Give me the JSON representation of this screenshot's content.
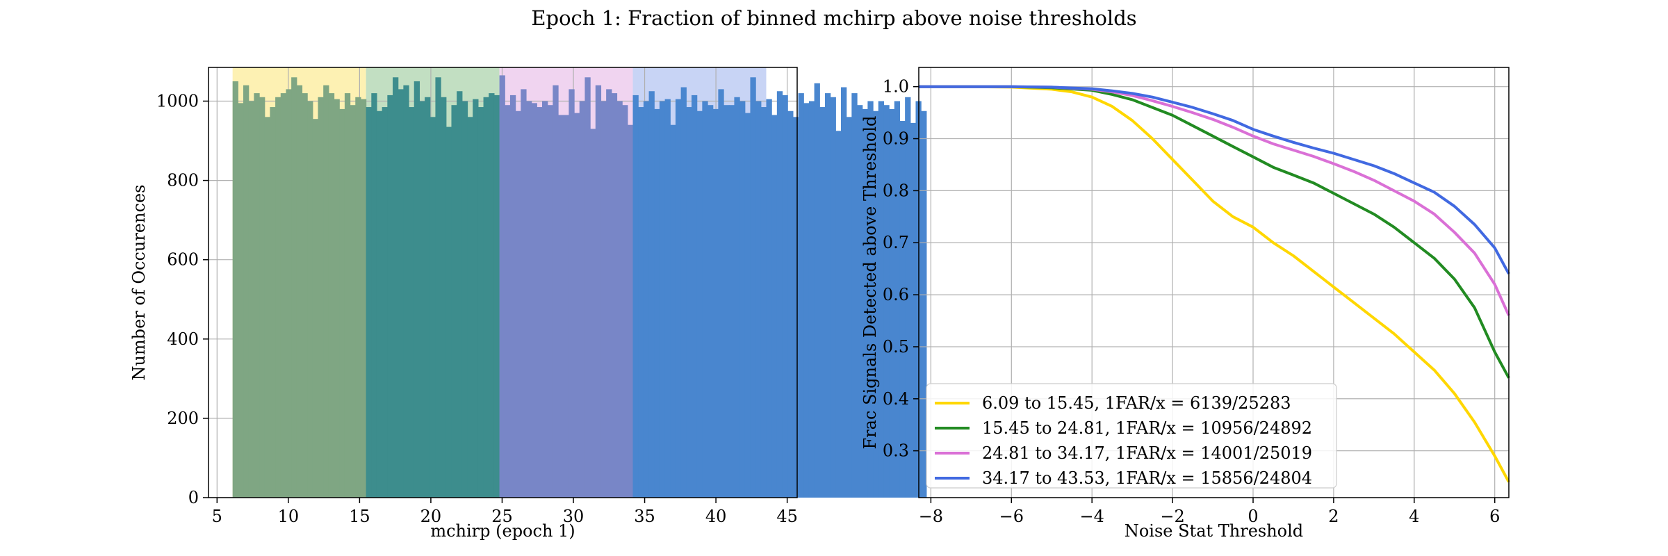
{
  "suptitle": "Epoch 1: Fraction of binned mchirp above noise thresholds",
  "chart_data": [
    {
      "type": "bar",
      "subtype": "histogram",
      "title": "",
      "xlabel": "mchirp (epoch 1)",
      "ylabel": "Number of Occurences",
      "xlim": [
        4.4,
        45.7
      ],
      "ylim": [
        0,
        1085
      ],
      "xticks": [
        5,
        10,
        15,
        20,
        25,
        30,
        35,
        40,
        45
      ],
      "yticks": [
        0,
        200,
        400,
        600,
        800,
        1000
      ],
      "grid": true,
      "bin_edges_start": 6.09,
      "bin_width": 0.3744,
      "counts": [
        1050,
        995,
        1040,
        1000,
        1020,
        1010,
        960,
        985,
        1010,
        1020,
        1030,
        1060,
        1040,
        1020,
        1000,
        955,
        1010,
        1040,
        1020,
        1005,
        980,
        1020,
        990,
        1010,
        1005,
        985,
        1020,
        975,
        985,
        1015,
        1060,
        1030,
        1040,
        985,
        1050,
        1000,
        1010,
        960,
        1060,
        1010,
        935,
        990,
        1025,
        1000,
        960,
        1005,
        985,
        1010,
        1020,
        1015,
        1065,
        990,
        1015,
        975,
        1030,
        1000,
        995,
        985,
        1000,
        990,
        1040,
        965,
        965,
        1030,
        970,
        1000,
        1060,
        930,
        1040,
        1000,
        1030,
        1020,
        1000,
        990,
        940,
        1015,
        985,
        1000,
        1025,
        980,
        1000,
        1005,
        940,
        1005,
        1035,
        985,
        1015,
        975,
        1000,
        990,
        980,
        1030,
        990,
        990,
        1010,
        1000,
        970,
        1060,
        1000,
        985,
        1005,
        965,
        1025,
        1015,
        975,
        960,
        1020,
        995,
        1000,
        1045,
        985,
        1020,
        1010,
        925,
        1035,
        960,
        1020,
        990,
        980,
        1000,
        975,
        1000,
        990,
        980,
        1000,
        950,
        1010,
        945,
        1000,
        975
      ],
      "bins": [
        {
          "label": "6.09 to 15.45",
          "min": 6.09,
          "max": 15.45,
          "bar_color": "#7fa683",
          "band_color": "#fdf1b3"
        },
        {
          "label": "15.45 to 24.81",
          "min": 15.45,
          "max": 24.81,
          "bar_color": "#3d8d8d",
          "band_color": "#c2dfc2"
        },
        {
          "label": "24.81 to 34.17",
          "min": 24.81,
          "max": 34.17,
          "bar_color": "#7886c7",
          "band_color": "#f0d4f0"
        },
        {
          "label": "34.17 to 43.53",
          "min": 34.17,
          "max": 43.53,
          "bar_color": "#4986cf",
          "band_color": "#c8d4f5"
        }
      ]
    },
    {
      "type": "line",
      "title": "",
      "xlabel": "Noise Stat Threshold",
      "ylabel": "Frac Signals Detected above Threshold",
      "xlim": [
        -8.3,
        6.35
      ],
      "ylim": [
        0.21,
        1.037
      ],
      "xticks": [
        -8,
        -6,
        -4,
        -2,
        0,
        2,
        4,
        6
      ],
      "yticks": [
        0.3,
        0.4,
        0.5,
        0.6,
        0.7,
        0.8,
        0.9,
        1.0
      ],
      "ytick_labels": [
        "0.3",
        "0.4",
        "0.5",
        "0.6",
        "0.7",
        "0.8",
        "0.9",
        "1.0"
      ],
      "grid": true,
      "legend_position": "lower-left",
      "series": [
        {
          "name": "6.09 to 15.45, 1FAR/x = 6139/25283",
          "color": "#ffd700",
          "x": [
            -8.3,
            -7,
            -6,
            -5,
            -4.5,
            -4,
            -3.5,
            -3,
            -2.5,
            -2,
            -1.5,
            -1,
            -0.5,
            0,
            0.5,
            1,
            1.5,
            2,
            2.5,
            3,
            3.5,
            4,
            4.5,
            5,
            5.5,
            6,
            6.35
          ],
          "y": [
            1.0,
            1.0,
            0.999,
            0.995,
            0.99,
            0.98,
            0.962,
            0.935,
            0.9,
            0.86,
            0.82,
            0.78,
            0.75,
            0.73,
            0.7,
            0.675,
            0.645,
            0.615,
            0.585,
            0.555,
            0.525,
            0.49,
            0.455,
            0.41,
            0.355,
            0.29,
            0.24
          ]
        },
        {
          "name": "15.45 to 24.81, 1FAR/x = 10956/24892",
          "color": "#228b22",
          "x": [
            -8.3,
            -6,
            -5,
            -4,
            -3.5,
            -3,
            -2.5,
            -2,
            -1.5,
            -1,
            -0.5,
            0,
            0.5,
            1,
            1.5,
            2,
            2.5,
            3,
            3.5,
            4,
            4.5,
            5,
            5.5,
            6,
            6.35
          ],
          "y": [
            1.0,
            1.0,
            0.998,
            0.993,
            0.985,
            0.975,
            0.96,
            0.945,
            0.925,
            0.905,
            0.885,
            0.865,
            0.845,
            0.83,
            0.815,
            0.795,
            0.775,
            0.755,
            0.73,
            0.7,
            0.67,
            0.63,
            0.575,
            0.49,
            0.44
          ]
        },
        {
          "name": "24.81 to 34.17, 1FAR/x = 14001/25019",
          "color": "#da70d6",
          "x": [
            -8.3,
            -6,
            -5,
            -4,
            -3.5,
            -3,
            -2.5,
            -2,
            -1.5,
            -1,
            -0.5,
            0,
            0.5,
            1,
            1.5,
            2,
            2.5,
            3,
            3.5,
            4,
            4.5,
            5,
            5.5,
            6,
            6.35
          ],
          "y": [
            1.0,
            1.0,
            0.999,
            0.995,
            0.99,
            0.983,
            0.973,
            0.962,
            0.95,
            0.937,
            0.922,
            0.905,
            0.89,
            0.878,
            0.866,
            0.852,
            0.837,
            0.82,
            0.8,
            0.78,
            0.755,
            0.72,
            0.68,
            0.62,
            0.56
          ]
        },
        {
          "name": "34.17 to 43.53, 1FAR/x = 15856/24804",
          "color": "#4169e1",
          "x": [
            -8.3,
            -6,
            -5,
            -4,
            -3.5,
            -3,
            -2.5,
            -2,
            -1.5,
            -1,
            -0.5,
            0,
            0.5,
            1,
            1.5,
            2,
            2.5,
            3,
            3.5,
            4,
            4.5,
            5,
            5.5,
            6,
            6.35
          ],
          "y": [
            1.0,
            1.0,
            0.999,
            0.996,
            0.992,
            0.987,
            0.98,
            0.97,
            0.96,
            0.948,
            0.935,
            0.918,
            0.905,
            0.893,
            0.882,
            0.872,
            0.86,
            0.848,
            0.833,
            0.815,
            0.797,
            0.77,
            0.735,
            0.69,
            0.64
          ]
        }
      ]
    }
  ]
}
